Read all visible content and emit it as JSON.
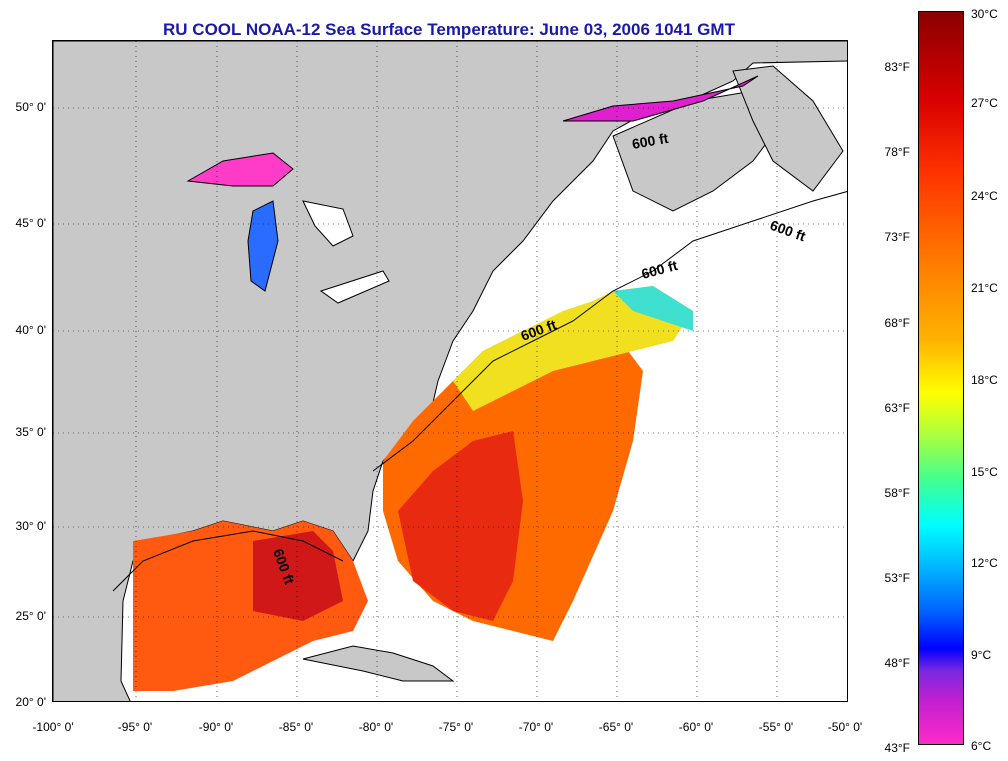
{
  "title": "RU COOL  NOAA-12  Sea Surface Temperature:  June 03, 2006 1041 GMT",
  "map": {
    "lat_labels": [
      "50° 0'",
      "45° 0'",
      "40° 0'",
      "35° 0'",
      "30° 0'",
      "25° 0'",
      "20° 0'"
    ],
    "lon_labels": [
      "-100° 0'",
      "-95° 0'",
      "-90° 0'",
      "-85° 0'",
      "-80° 0'",
      "-75° 0'",
      "-70° 0'",
      "-65° 0'",
      "-60° 0'",
      "-55° 0'",
      "-50° 0'"
    ],
    "isobath_labels": [
      "600 ft",
      "600 ft",
      "600 ft",
      "600 ft",
      "600 ft"
    ],
    "colors": {
      "land": "#c8c8c8",
      "no_data": "#ffffff",
      "coast": "#000000"
    }
  },
  "colorbar": {
    "celsius": [
      "30°C",
      "27°C",
      "24°C",
      "21°C",
      "18°C",
      "15°C",
      "12°C",
      "9°C",
      "6°C"
    ],
    "fahrenheit": [
      "83°F",
      "78°F",
      "73°F",
      "68°F",
      "63°F",
      "58°F",
      "53°F",
      "48°F",
      "43°F"
    ]
  }
}
